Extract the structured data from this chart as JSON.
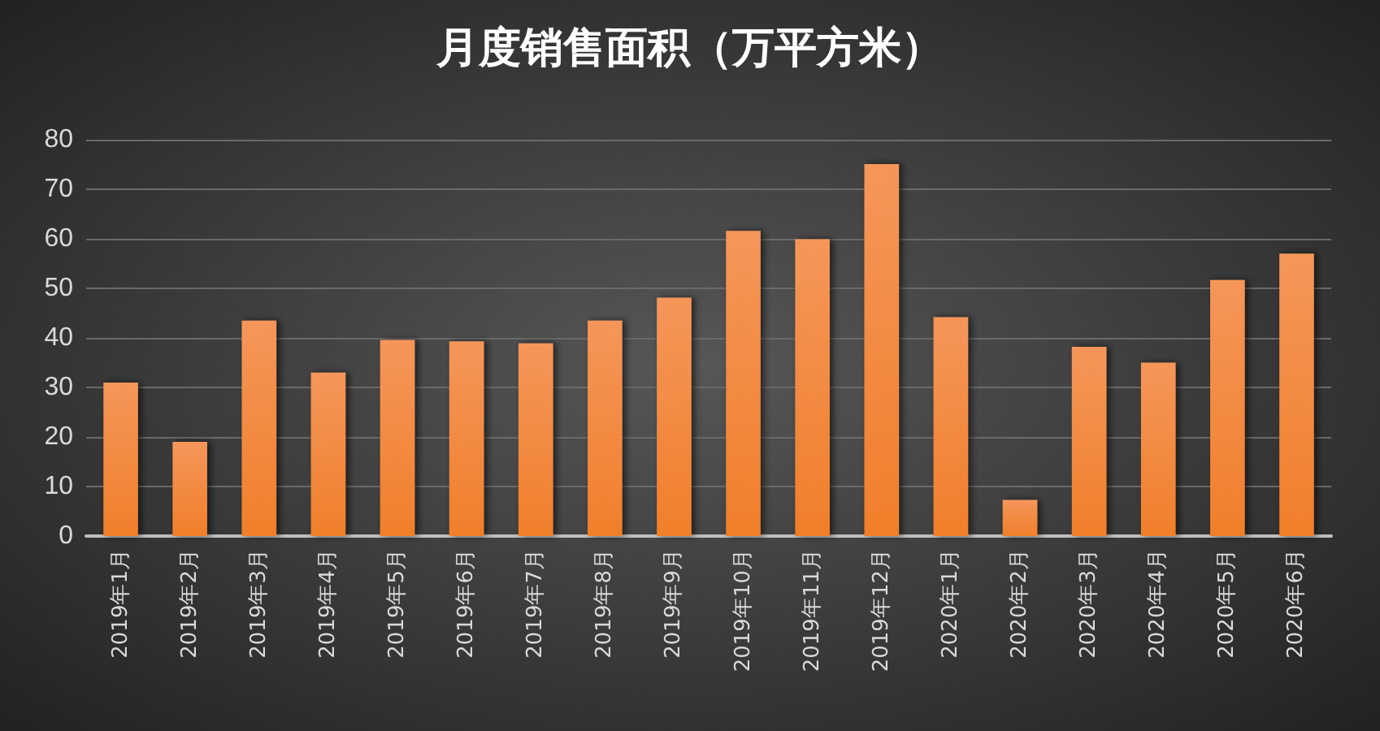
{
  "chart_data": {
    "type": "bar",
    "title": "月度销售面积（万平方米）",
    "categories": [
      "2019年1月",
      "2019年2月",
      "2019年3月",
      "2019年4月",
      "2019年5月",
      "2019年6月",
      "2019年7月",
      "2019年8月",
      "2019年9月",
      "2019年10月",
      "2019年11月",
      "2019年12月",
      "2020年1月",
      "2020年2月",
      "2020年3月",
      "2020年4月",
      "2020年5月",
      "2020年6月"
    ],
    "values": [
      31.0,
      19.0,
      43.5,
      33.0,
      39.6,
      39.3,
      38.9,
      43.5,
      48.1,
      61.6,
      59.9,
      75.1,
      44.2,
      7.3,
      38.2,
      35.0,
      51.7,
      57.0
    ],
    "color": "#f07f2a",
    "ylim": [
      0,
      80
    ],
    "yticks": [
      0,
      10,
      20,
      30,
      40,
      50,
      60,
      70,
      80
    ],
    "grid": "y"
  }
}
